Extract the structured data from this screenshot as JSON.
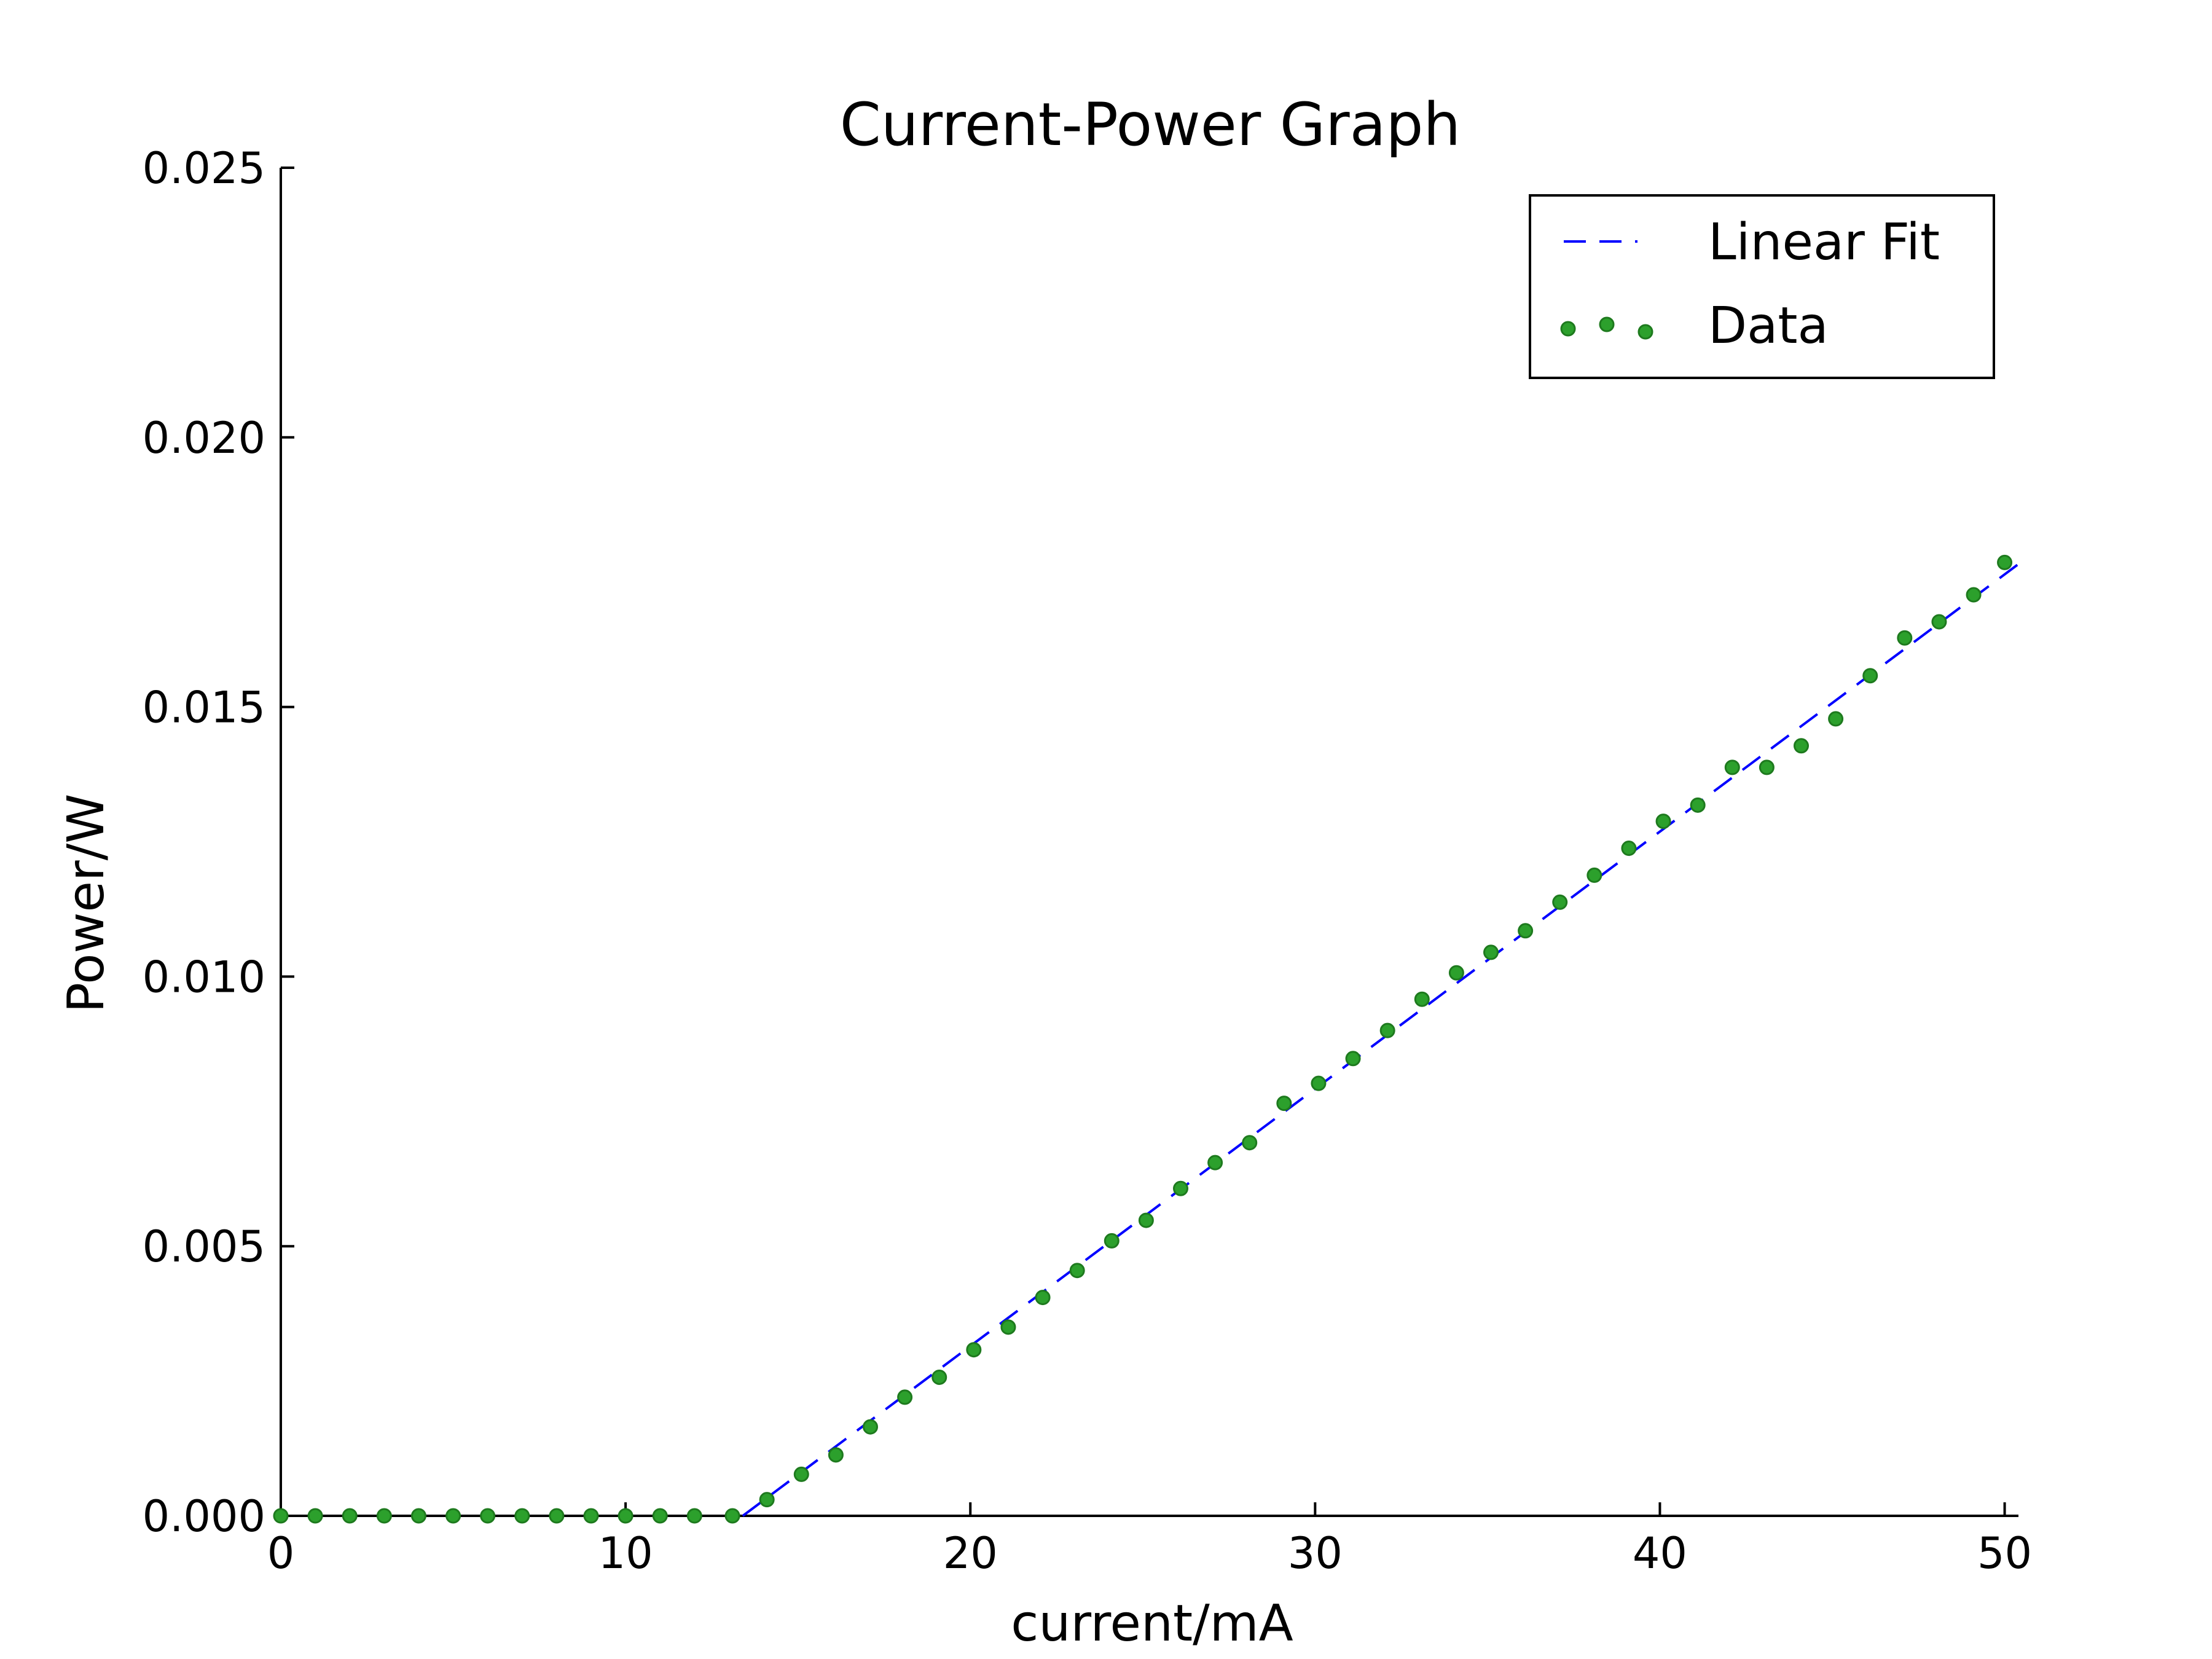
{
  "chart_data": {
    "type": "scatter",
    "title": "Current-Power Graph",
    "xlabel": "current/mA",
    "ylabel": "Power/W",
    "xlim": [
      0,
      50.4
    ],
    "ylim": [
      0,
      0.025
    ],
    "xticks": [
      0,
      10,
      20,
      30,
      40,
      50
    ],
    "xtick_labels": [
      "0",
      "10",
      "20",
      "30",
      "40",
      "50"
    ],
    "yticks": [
      0,
      0.005,
      0.01,
      0.015,
      0.02,
      0.025
    ],
    "ytick_labels": [
      "0.000",
      "0.005",
      "0.010",
      "0.015",
      "0.020",
      "0.025"
    ],
    "grid": false,
    "legend_position": "top-right",
    "series": [
      {
        "name": "Linear Fit",
        "kind": "line",
        "style": "dashed",
        "color": "#0000ff",
        "x": [
          13.4,
          50.4
        ],
        "y": [
          0.0,
          0.01765
        ]
      },
      {
        "name": "Data",
        "kind": "scatter",
        "color": "#2ca02c",
        "x": [
          0,
          1,
          2,
          3,
          4,
          5,
          6,
          7,
          8,
          9,
          10,
          11,
          12,
          13.1,
          14.1,
          15.1,
          16.1,
          17.1,
          18.1,
          19.1,
          20.1,
          21.1,
          22.1,
          23.1,
          24.1,
          25.1,
          26.1,
          27.1,
          28.1,
          29.1,
          30.1,
          31.1,
          32.1,
          33.1,
          34.1,
          35.1,
          36.1,
          37.1,
          38.1,
          39.1,
          40.1,
          41.1,
          42.1,
          43.1,
          44.1,
          45.1,
          46.1,
          47.1,
          48.1,
          49.1,
          50.0
        ],
        "y": [
          0,
          0,
          0,
          0,
          0,
          0,
          0,
          0,
          0,
          0,
          0,
          0,
          0,
          0,
          0.0003,
          0.00077,
          0.00113,
          0.00165,
          0.0022,
          0.00257,
          0.00308,
          0.0035,
          0.00405,
          0.00455,
          0.0051,
          0.00548,
          0.00607,
          0.00655,
          0.00692,
          0.00765,
          0.00802,
          0.00848,
          0.009,
          0.00958,
          0.01007,
          0.01045,
          0.01085,
          0.01138,
          0.01188,
          0.01238,
          0.01288,
          0.01318,
          0.01388,
          0.01388,
          0.01428,
          0.01478,
          0.01558,
          0.01628,
          0.01658,
          0.01708,
          0.01768
        ]
      }
    ]
  }
}
